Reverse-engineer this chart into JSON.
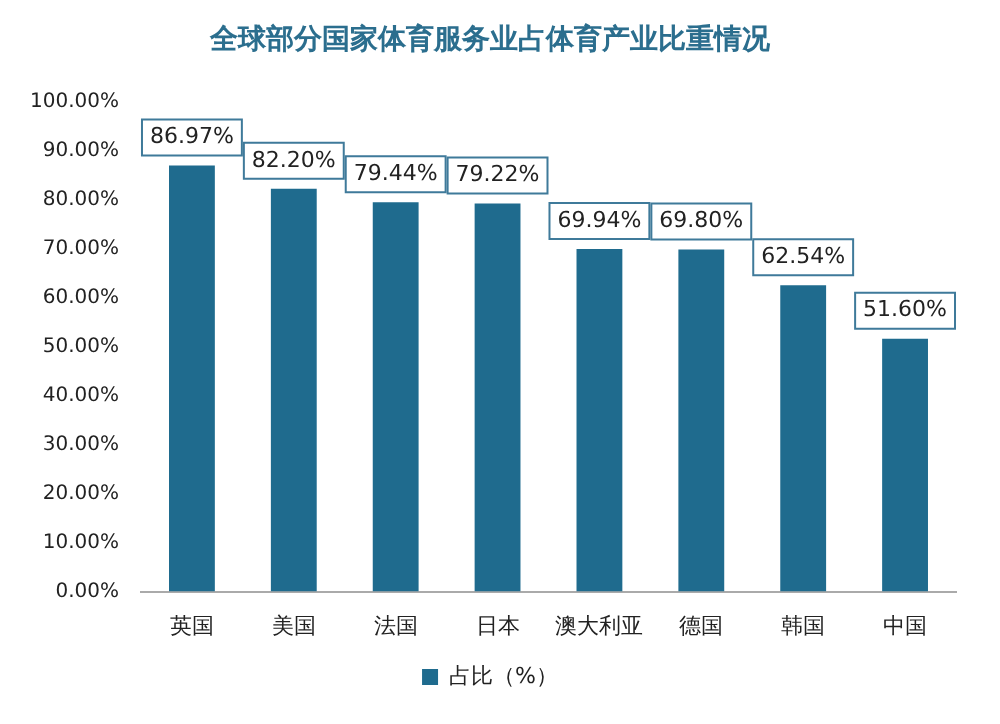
{
  "chart_data": {
    "type": "bar",
    "title": "全球部分国家体育服务业占体育产业比重情况",
    "categories": [
      "英国",
      "美国",
      "法国",
      "日本",
      "澳大利亚",
      "德国",
      "韩国",
      "中国"
    ],
    "series": [
      {
        "name": "占比（%）",
        "color": "#1f6b8e",
        "values": [
          86.97,
          82.2,
          79.44,
          79.22,
          69.94,
          69.8,
          62.54,
          51.6
        ]
      }
    ],
    "value_labels": [
      "86.97%",
      "82.20%",
      "79.44%",
      "79.22%",
      "69.94%",
      "69.80%",
      "62.54%",
      "51.60%"
    ],
    "ylim": [
      0,
      100
    ],
    "yticks": [
      {
        "value": 0,
        "label": "0.00%"
      },
      {
        "value": 10,
        "label": "10.00%"
      },
      {
        "value": 20,
        "label": "20.00%"
      },
      {
        "value": 30,
        "label": "30.00%"
      },
      {
        "value": 40,
        "label": "40.00%"
      },
      {
        "value": 50,
        "label": "50.00%"
      },
      {
        "value": 60,
        "label": "60.00%"
      },
      {
        "value": 70,
        "label": "70.00%"
      },
      {
        "value": 80,
        "label": "80.00%"
      },
      {
        "value": 90,
        "label": "90.00%"
      },
      {
        "value": 100,
        "label": "100.00%"
      }
    ],
    "grid": false,
    "legend": "bottom"
  }
}
